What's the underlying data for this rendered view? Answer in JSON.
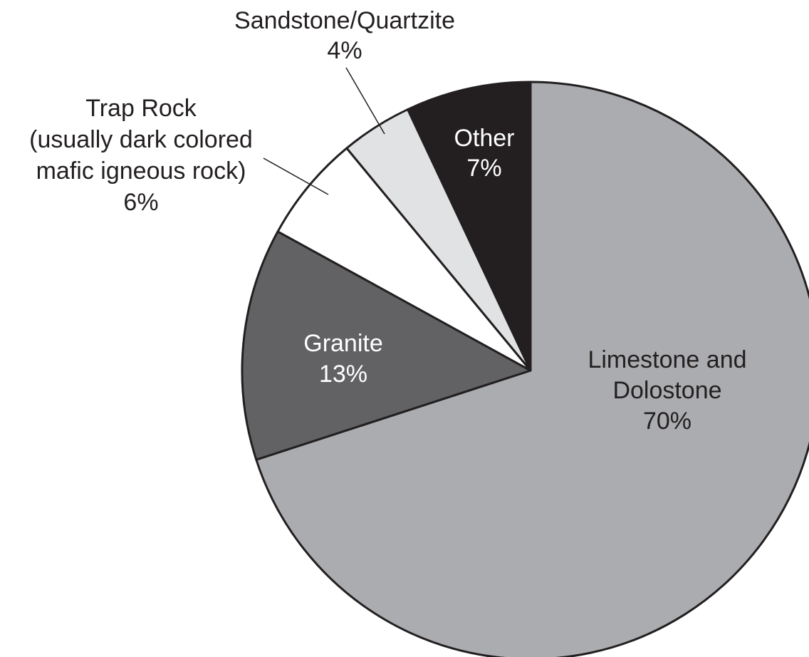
{
  "chart_data": {
    "type": "pie",
    "start_angle_deg": 0,
    "direction": "clockwise",
    "slices": [
      {
        "name": "Limestone and Dolostone",
        "lines": [
          "Limestone and",
          "Dolostone"
        ],
        "value": 70,
        "value_label": "70%",
        "color": "#abacaf",
        "text_color": "#231f20"
      },
      {
        "name": "Granite",
        "lines": [
          "Granite"
        ],
        "value": 13,
        "value_label": "13%",
        "color": "#626264",
        "text_color": "#ffffff"
      },
      {
        "name": "Trap Rock (usually dark colored mafic igneous rock)",
        "lines": [
          "Trap Rock",
          "(usually dark colored",
          "mafic igneous rock)"
        ],
        "value": 6,
        "value_label": "6%",
        "color": "#ffffff",
        "text_color": "#231f20"
      },
      {
        "name": "Sandstone/Quartzite",
        "lines": [
          "Sandstone/Quartzite"
        ],
        "value": 4,
        "value_label": "4%",
        "color": "#e1e2e4",
        "text_color": "#231f20"
      },
      {
        "name": "Other",
        "lines": [
          "Other"
        ],
        "value": 7,
        "value_label": "7%",
        "color": "#231f20",
        "text_color": "#ffffff"
      }
    ],
    "outline_color": "#231f20"
  }
}
